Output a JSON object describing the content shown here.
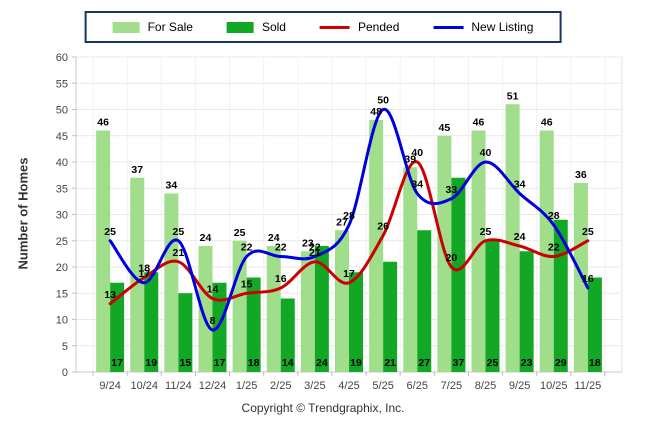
{
  "legend": {
    "items": [
      {
        "label": "For Sale",
        "type": "bar",
        "color": "#A0DE8C"
      },
      {
        "label": "Sold",
        "type": "bar",
        "color": "#12A826"
      },
      {
        "label": "Pended",
        "type": "line",
        "color": "#CC0000"
      },
      {
        "label": "New Listing",
        "type": "line",
        "color": "#0000DC"
      }
    ]
  },
  "chart_data": {
    "type": "bar",
    "subtype": "grouped-bar-with-lines",
    "categories": [
      "9/24",
      "10/24",
      "11/24",
      "12/24",
      "1/25",
      "2/25",
      "3/25",
      "4/25",
      "5/25",
      "6/25",
      "7/25",
      "8/25",
      "9/25",
      "10/25",
      "11/25"
    ],
    "series": [
      {
        "name": "For Sale",
        "type": "bar",
        "color": "#A0DE8C",
        "values": [
          46,
          37,
          34,
          24,
          25,
          24,
          23,
          27,
          48,
          39,
          45,
          46,
          51,
          46,
          36
        ]
      },
      {
        "name": "Sold",
        "type": "bar",
        "color": "#12A826",
        "values": [
          17,
          19,
          15,
          17,
          18,
          14,
          24,
          19,
          21,
          27,
          37,
          25,
          23,
          29,
          18
        ]
      },
      {
        "name": "Pended",
        "type": "line",
        "color": "#CC0000",
        "values": [
          13,
          18,
          21,
          14,
          15,
          16,
          21,
          17,
          26,
          40,
          20,
          25,
          24,
          22,
          25
        ]
      },
      {
        "name": "New Listing",
        "type": "line",
        "color": "#0000DC",
        "values": [
          25,
          17,
          25,
          8,
          22,
          22,
          22,
          28,
          50,
          34,
          33,
          40,
          34,
          28,
          16
        ]
      }
    ],
    "title": "",
    "xlabel": "",
    "ylabel": "Number of Homes",
    "ylim": [
      0,
      60
    ],
    "ytick_step": 5,
    "grid": true,
    "legend_position": "top-center",
    "gridline_color": "#E9E9E9",
    "axis_line_color": "#C8C8C8",
    "axis_text_color": "#444444",
    "data_label_color": "#000000"
  },
  "footer": {
    "copyright": "Copyright © Trendgraphix, Inc."
  }
}
